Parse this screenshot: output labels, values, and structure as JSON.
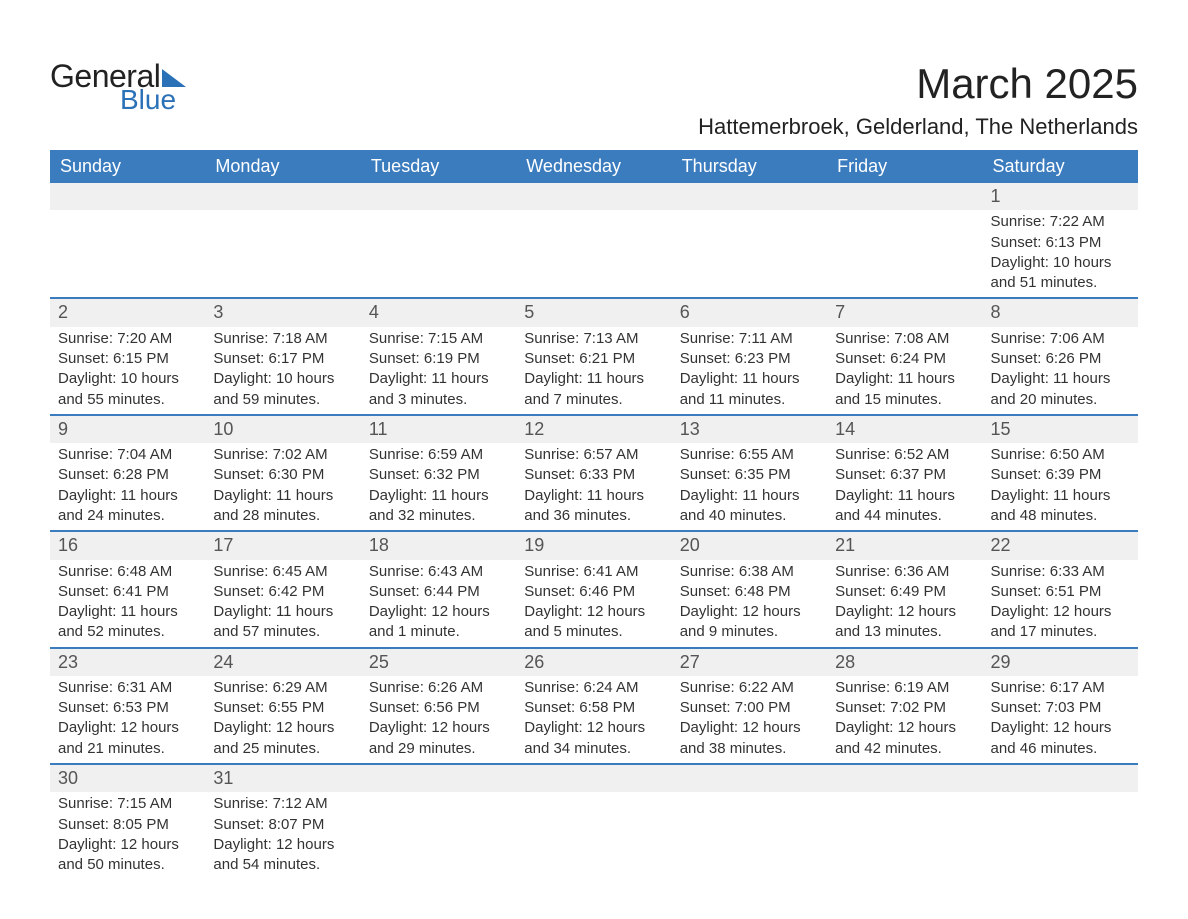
{
  "logo": {
    "text1": "General",
    "text2": "Blue",
    "accent_color": "#2b71b8"
  },
  "title": "March 2025",
  "subtitle": "Hattemerbroek, Gelderland, The Netherlands",
  "colors": {
    "header_bg": "#3b7cbf",
    "header_fg": "#ffffff",
    "daynum_bg": "#f0f0f0",
    "row_border": "#3b7cbf",
    "text": "#333333"
  },
  "day_names": [
    "Sunday",
    "Monday",
    "Tuesday",
    "Wednesday",
    "Thursday",
    "Friday",
    "Saturday"
  ],
  "weeks": [
    [
      null,
      null,
      null,
      null,
      null,
      null,
      {
        "n": "1",
        "sr": "7:22 AM",
        "ss": "6:13 PM",
        "dl": "10 hours and 51 minutes."
      }
    ],
    [
      {
        "n": "2",
        "sr": "7:20 AM",
        "ss": "6:15 PM",
        "dl": "10 hours and 55 minutes."
      },
      {
        "n": "3",
        "sr": "7:18 AM",
        "ss": "6:17 PM",
        "dl": "10 hours and 59 minutes."
      },
      {
        "n": "4",
        "sr": "7:15 AM",
        "ss": "6:19 PM",
        "dl": "11 hours and 3 minutes."
      },
      {
        "n": "5",
        "sr": "7:13 AM",
        "ss": "6:21 PM",
        "dl": "11 hours and 7 minutes."
      },
      {
        "n": "6",
        "sr": "7:11 AM",
        "ss": "6:23 PM",
        "dl": "11 hours and 11 minutes."
      },
      {
        "n": "7",
        "sr": "7:08 AM",
        "ss": "6:24 PM",
        "dl": "11 hours and 15 minutes."
      },
      {
        "n": "8",
        "sr": "7:06 AM",
        "ss": "6:26 PM",
        "dl": "11 hours and 20 minutes."
      }
    ],
    [
      {
        "n": "9",
        "sr": "7:04 AM",
        "ss": "6:28 PM",
        "dl": "11 hours and 24 minutes."
      },
      {
        "n": "10",
        "sr": "7:02 AM",
        "ss": "6:30 PM",
        "dl": "11 hours and 28 minutes."
      },
      {
        "n": "11",
        "sr": "6:59 AM",
        "ss": "6:32 PM",
        "dl": "11 hours and 32 minutes."
      },
      {
        "n": "12",
        "sr": "6:57 AM",
        "ss": "6:33 PM",
        "dl": "11 hours and 36 minutes."
      },
      {
        "n": "13",
        "sr": "6:55 AM",
        "ss": "6:35 PM",
        "dl": "11 hours and 40 minutes."
      },
      {
        "n": "14",
        "sr": "6:52 AM",
        "ss": "6:37 PM",
        "dl": "11 hours and 44 minutes."
      },
      {
        "n": "15",
        "sr": "6:50 AM",
        "ss": "6:39 PM",
        "dl": "11 hours and 48 minutes."
      }
    ],
    [
      {
        "n": "16",
        "sr": "6:48 AM",
        "ss": "6:41 PM",
        "dl": "11 hours and 52 minutes."
      },
      {
        "n": "17",
        "sr": "6:45 AM",
        "ss": "6:42 PM",
        "dl": "11 hours and 57 minutes."
      },
      {
        "n": "18",
        "sr": "6:43 AM",
        "ss": "6:44 PM",
        "dl": "12 hours and 1 minute."
      },
      {
        "n": "19",
        "sr": "6:41 AM",
        "ss": "6:46 PM",
        "dl": "12 hours and 5 minutes."
      },
      {
        "n": "20",
        "sr": "6:38 AM",
        "ss": "6:48 PM",
        "dl": "12 hours and 9 minutes."
      },
      {
        "n": "21",
        "sr": "6:36 AM",
        "ss": "6:49 PM",
        "dl": "12 hours and 13 minutes."
      },
      {
        "n": "22",
        "sr": "6:33 AM",
        "ss": "6:51 PM",
        "dl": "12 hours and 17 minutes."
      }
    ],
    [
      {
        "n": "23",
        "sr": "6:31 AM",
        "ss": "6:53 PM",
        "dl": "12 hours and 21 minutes."
      },
      {
        "n": "24",
        "sr": "6:29 AM",
        "ss": "6:55 PM",
        "dl": "12 hours and 25 minutes."
      },
      {
        "n": "25",
        "sr": "6:26 AM",
        "ss": "6:56 PM",
        "dl": "12 hours and 29 minutes."
      },
      {
        "n": "26",
        "sr": "6:24 AM",
        "ss": "6:58 PM",
        "dl": "12 hours and 34 minutes."
      },
      {
        "n": "27",
        "sr": "6:22 AM",
        "ss": "7:00 PM",
        "dl": "12 hours and 38 minutes."
      },
      {
        "n": "28",
        "sr": "6:19 AM",
        "ss": "7:02 PM",
        "dl": "12 hours and 42 minutes."
      },
      {
        "n": "29",
        "sr": "6:17 AM",
        "ss": "7:03 PM",
        "dl": "12 hours and 46 minutes."
      }
    ],
    [
      {
        "n": "30",
        "sr": "7:15 AM",
        "ss": "8:05 PM",
        "dl": "12 hours and 50 minutes."
      },
      {
        "n": "31",
        "sr": "7:12 AM",
        "ss": "8:07 PM",
        "dl": "12 hours and 54 minutes."
      },
      null,
      null,
      null,
      null,
      null
    ]
  ],
  "labels": {
    "sunrise": "Sunrise:",
    "sunset": "Sunset:",
    "daylight": "Daylight:"
  }
}
